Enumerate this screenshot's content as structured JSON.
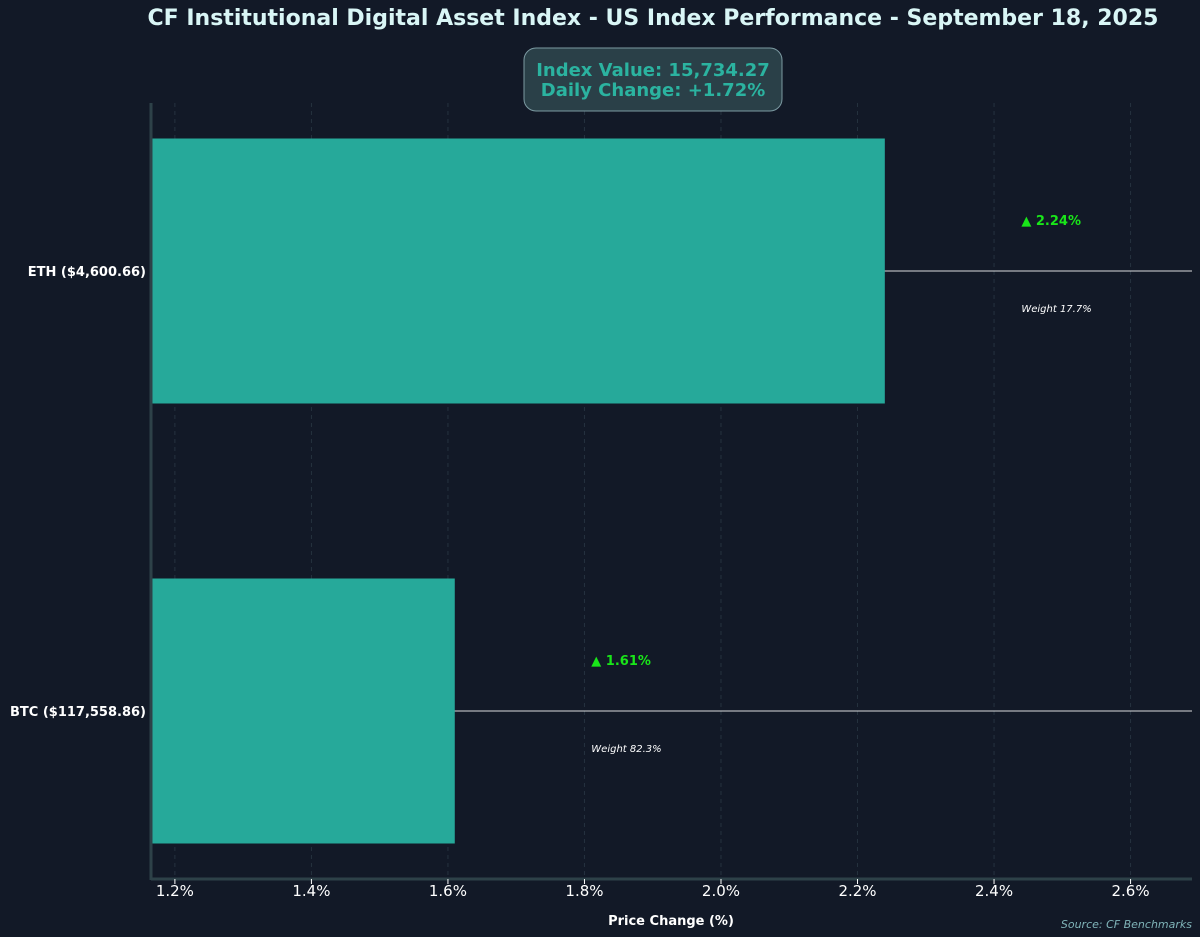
{
  "chart_data": {
    "type": "bar",
    "orientation": "horizontal",
    "title": "CF Institutional Digital Asset Index - US Index Performance - September 18, 2025",
    "info_box": {
      "line1": "Index Value: 15,734.27",
      "line2": "Daily Change: +1.72%"
    },
    "categories": [
      "ETH ($4,600.66)",
      "BTC ($117,558.86)"
    ],
    "values": [
      2.24,
      1.61
    ],
    "value_labels": [
      "▲ 2.24%",
      "▲ 1.61%"
    ],
    "weight_labels": [
      "Weight 17.7%",
      "Weight 82.3%"
    ],
    "xlabel": "Price Change (%)",
    "ylabel": "",
    "xlim": [
      1.165,
      2.69
    ],
    "x_ticks": [
      1.2,
      1.4,
      1.6,
      1.8,
      2.0,
      2.2,
      2.4,
      2.6
    ],
    "x_tick_labels": [
      "1.2%",
      "1.4%",
      "1.6%",
      "1.8%",
      "2.0%",
      "2.2%",
      "2.4%",
      "2.6%"
    ],
    "grid": "vertical dashed",
    "source": "Source: CF Benchmarks",
    "colors": {
      "background": "#121927",
      "bar": "#26a99a",
      "title": "#d9f6f6",
      "info_text": "#2bb3a0",
      "info_box_bg": "#2a4048",
      "info_box_border": "#7c9aa2",
      "up_label": "#19e619",
      "axis": "#2d4148",
      "grid": "#25323f",
      "source": "#7fb3b8"
    }
  }
}
